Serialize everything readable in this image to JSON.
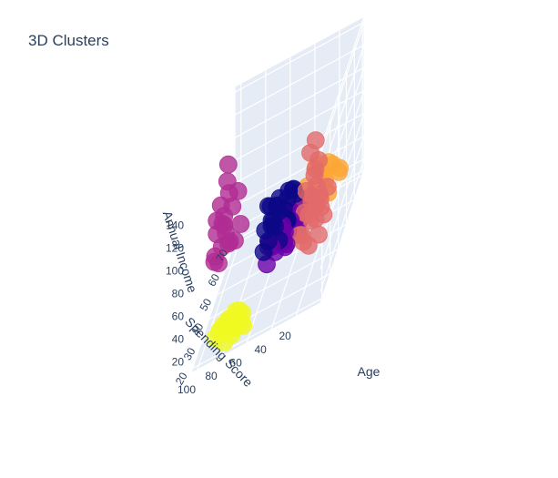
{
  "chart_data": {
    "type": "scatter3d",
    "title": "3D Clusters",
    "axes": {
      "x": {
        "label": "Age",
        "range": [
          18,
          72
        ],
        "ticks": [
          "20",
          "30",
          "40",
          "50",
          "60",
          "70"
        ]
      },
      "y": {
        "label": "Spending Score",
        "range": [
          0,
          105
        ],
        "ticks": [
          "20",
          "40",
          "60",
          "80",
          "100"
        ]
      },
      "z": {
        "label": "Annual Income",
        "range": [
          10,
          145
        ],
        "ticks": [
          "20",
          "40",
          "60",
          "80",
          "100",
          "120",
          "140"
        ]
      }
    },
    "grid": true,
    "legend": "none",
    "series": [
      {
        "color": "#e26a6a",
        "points": [
          [
            35,
            15,
            125
          ],
          [
            33,
            18,
            120
          ],
          [
            34,
            12,
            108
          ],
          [
            32,
            14,
            100
          ],
          [
            36,
            16,
            98
          ],
          [
            31,
            20,
            92
          ],
          [
            33,
            13,
            88
          ],
          [
            30,
            15,
            82
          ],
          [
            35,
            18,
            78
          ],
          [
            28,
            16,
            75
          ],
          [
            32,
            22,
            72
          ],
          [
            36,
            12,
            70
          ],
          [
            30,
            12,
            65
          ],
          [
            38,
            18,
            62
          ],
          [
            29,
            24,
            60
          ],
          [
            34,
            8,
            58
          ],
          [
            27,
            20,
            56
          ],
          [
            40,
            14,
            55
          ],
          [
            33,
            25,
            52
          ],
          [
            26,
            15,
            52
          ],
          [
            39,
            22,
            50
          ],
          [
            31,
            10,
            48
          ],
          [
            44,
            18,
            60
          ],
          [
            42,
            10,
            66
          ]
        ]
      },
      {
        "color": "#b02c92",
        "points": [
          [
            38,
            88,
            140
          ],
          [
            40,
            90,
            122
          ],
          [
            36,
            86,
            118
          ],
          [
            35,
            92,
            113
          ],
          [
            38,
            80,
            112
          ],
          [
            33,
            94,
            105
          ],
          [
            37,
            84,
            103
          ],
          [
            34,
            90,
            98
          ],
          [
            39,
            92,
            95
          ],
          [
            32,
            86,
            92
          ],
          [
            36,
            96,
            88
          ],
          [
            30,
            88,
            85
          ],
          [
            38,
            78,
            82
          ],
          [
            31,
            94,
            78
          ],
          [
            35,
            86,
            76
          ],
          [
            29,
            90,
            74
          ],
          [
            37,
            82,
            72
          ],
          [
            33,
            96,
            70
          ],
          [
            40,
            88,
            68
          ],
          [
            36,
            90,
            92
          ]
        ]
      },
      {
        "color": "#0d0887",
        "points": [
          [
            45,
            60,
            72
          ],
          [
            43,
            50,
            66
          ],
          [
            48,
            55,
            62
          ],
          [
            41,
            52,
            58
          ],
          [
            50,
            48,
            60
          ],
          [
            46,
            58,
            56
          ],
          [
            39,
            56,
            52
          ],
          [
            52,
            52,
            50
          ],
          [
            47,
            46,
            48
          ],
          [
            44,
            62,
            54
          ],
          [
            53,
            58,
            54
          ],
          [
            40,
            48,
            46
          ],
          [
            49,
            60,
            46
          ],
          [
            42,
            54,
            62
          ],
          [
            55,
            50,
            58
          ],
          [
            58,
            48,
            52
          ],
          [
            36,
            58,
            50
          ],
          [
            47,
            52,
            70
          ],
          [
            54,
            44,
            54
          ],
          [
            60,
            50,
            48
          ],
          [
            44,
            44,
            52
          ],
          [
            51,
            62,
            60
          ]
        ]
      },
      {
        "color": "#fca636",
        "points": [
          [
            63,
            30,
            52
          ],
          [
            66,
            35,
            47
          ],
          [
            64,
            20,
            44
          ],
          [
            68,
            26,
            41
          ],
          [
            60,
            38,
            44
          ],
          [
            62,
            25,
            38
          ],
          [
            67,
            30,
            35
          ],
          [
            58,
            32,
            35
          ],
          [
            65,
            16,
            33
          ],
          [
            70,
            34,
            33
          ],
          [
            56,
            28,
            30
          ],
          [
            61,
            22,
            27
          ],
          [
            69,
            18,
            29
          ],
          [
            57,
            40,
            40
          ],
          [
            54,
            30,
            45
          ]
        ]
      },
      {
        "color": "#6a00a8",
        "points": [
          [
            50,
            52,
            40
          ],
          [
            54,
            54,
            44
          ],
          [
            47,
            48,
            38
          ],
          [
            52,
            60,
            38
          ],
          [
            49,
            55,
            36
          ],
          [
            56,
            50,
            36
          ],
          [
            45,
            52,
            35
          ],
          [
            58,
            56,
            40
          ],
          [
            51,
            46,
            34
          ],
          [
            53,
            58,
            33
          ],
          [
            46,
            58,
            33
          ],
          [
            55,
            44,
            31
          ],
          [
            48,
            62,
            31
          ],
          [
            60,
            52,
            31
          ],
          [
            44,
            46,
            30
          ],
          [
            57,
            60,
            29
          ],
          [
            50,
            40,
            28
          ],
          [
            52,
            64,
            27
          ],
          [
            62,
            46,
            27
          ],
          [
            47,
            56,
            25
          ],
          [
            54,
            50,
            25
          ],
          [
            59,
            62,
            24
          ],
          [
            49,
            48,
            23
          ],
          [
            56,
            56,
            22
          ],
          [
            52,
            52,
            21
          ],
          [
            58,
            44,
            21
          ],
          [
            46,
            62,
            20
          ],
          [
            62,
            58,
            20
          ],
          [
            48,
            44,
            44
          ]
        ]
      },
      {
        "color": "#f0f921",
        "points": [
          [
            24,
            70,
            32
          ],
          [
            22,
            78,
            31
          ],
          [
            26,
            74,
            29
          ],
          [
            23,
            82,
            28
          ],
          [
            25,
            68,
            26
          ],
          [
            21,
            76,
            25
          ],
          [
            27,
            80,
            24
          ],
          [
            24,
            86,
            23
          ],
          [
            22,
            72,
            22
          ],
          [
            26,
            84,
            20
          ],
          [
            23,
            66,
            18
          ],
          [
            25,
            90,
            17
          ],
          [
            21,
            80,
            16
          ],
          [
            27,
            70,
            15
          ],
          [
            24,
            76,
            14
          ]
        ]
      }
    ]
  }
}
